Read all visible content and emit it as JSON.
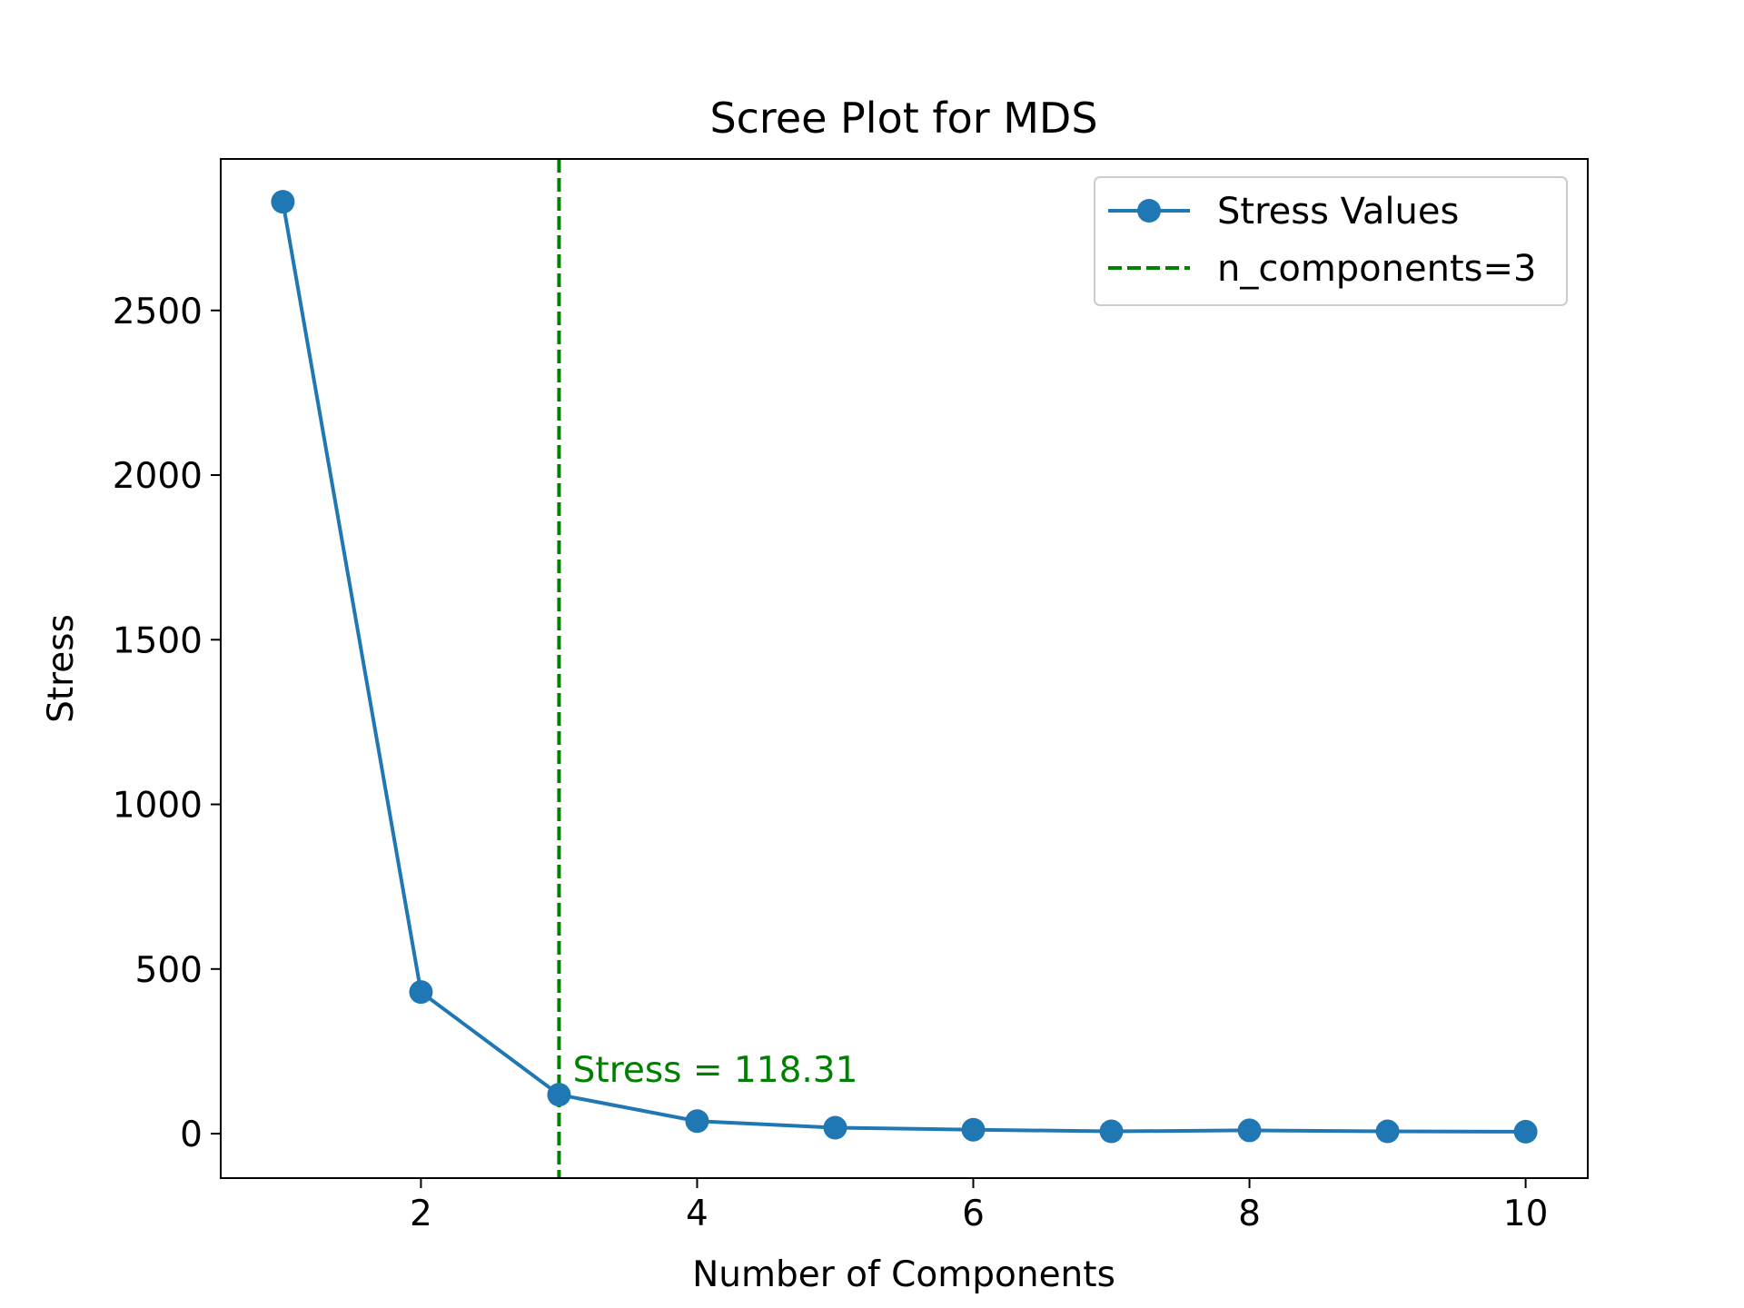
{
  "chart_data": {
    "type": "line",
    "title": "Scree Plot for MDS",
    "xlabel": "Number of Components",
    "ylabel": "Stress",
    "xlim": [
      0.55,
      10.45
    ],
    "ylim": [
      -135,
      2960
    ],
    "xticks": [
      2,
      4,
      6,
      8,
      10
    ],
    "yticks": [
      0,
      500,
      1000,
      1500,
      2000,
      2500
    ],
    "grid": false,
    "legend_position": "upper right",
    "series": [
      {
        "name": "Stress Values",
        "color": "#1f77b4",
        "marker": "circle",
        "x": [
          1,
          2,
          3,
          4,
          5,
          6,
          7,
          8,
          9,
          10
        ],
        "y": [
          2830,
          430,
          118.31,
          38,
          18,
          12,
          7,
          10,
          7,
          6
        ]
      }
    ],
    "reference_line": {
      "name": "n_components=3",
      "x": 3,
      "color": "#008000",
      "style": "dashed"
    },
    "annotation": {
      "text": "Stress = 118.31",
      "x": 3.1,
      "y": 118.31,
      "color": "#008000"
    }
  }
}
